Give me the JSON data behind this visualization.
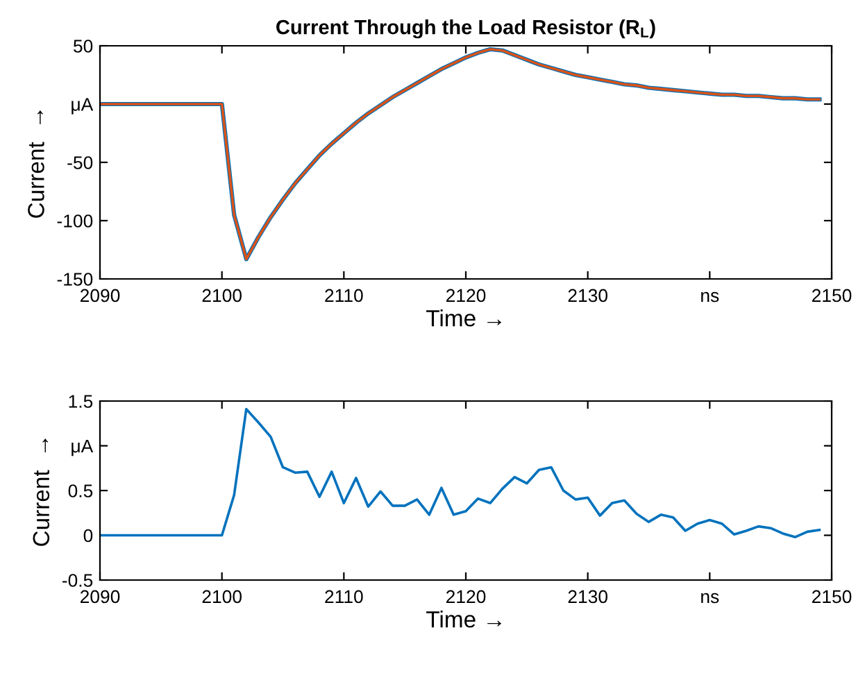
{
  "chart_data": [
    {
      "type": "line",
      "title": "Current Through the Load Resistor (R$_{L}$)",
      "xlabel": "Time →",
      "ylabel": "Current  →",
      "x": [
        2090,
        2100,
        2101,
        2102,
        2103,
        2104,
        2105,
        2106,
        2107,
        2108,
        2109,
        2110,
        2111,
        2112,
        2113,
        2114,
        2115,
        2116,
        2117,
        2118,
        2119,
        2120,
        2121,
        2122,
        2123,
        2124,
        2125,
        2126,
        2127,
        2128,
        2129,
        2130,
        2131,
        2132,
        2133,
        2134,
        2135,
        2136,
        2137,
        2138,
        2139,
        2140,
        2141,
        2142,
        2143,
        2144,
        2145,
        2146,
        2147,
        2148,
        2149
      ],
      "series": [
        {
          "color": "#0072bd",
          "values": [
            0,
            0,
            -95,
            -133,
            -114,
            -97,
            -82,
            -68,
            -56,
            -44,
            -34,
            -25,
            -16,
            -8,
            -1,
            6,
            12,
            18,
            24,
            30,
            35,
            40,
            44,
            47,
            46,
            42,
            38,
            34,
            31,
            28,
            25,
            23,
            21,
            19,
            17,
            16,
            14,
            13,
            12,
            11,
            10,
            9,
            8,
            8,
            7,
            7,
            6,
            5,
            5,
            4,
            4
          ]
        },
        {
          "color": "#d95319",
          "values": [
            0,
            0,
            -95,
            -133,
            -114,
            -97,
            -82,
            -68,
            -56,
            -44,
            -34,
            -25,
            -16,
            -8,
            -1,
            6,
            12,
            18,
            24,
            30,
            35,
            40,
            44,
            47,
            46,
            42,
            38,
            34,
            31,
            28,
            25,
            23,
            21,
            19,
            17,
            16,
            14,
            13,
            12,
            11,
            10,
            9,
            8,
            8,
            7,
            7,
            6,
            5,
            5,
            4,
            4
          ]
        }
      ],
      "xlim": [
        2090,
        2150
      ],
      "xticks": [
        2090,
        2100,
        2110,
        2120,
        2130,
        {
          "value": 2140,
          "label": "ns"
        },
        2150
      ],
      "ylim": [
        -150,
        50
      ],
      "yticks": [
        -150,
        -100,
        -50,
        {
          "value": 0,
          "label": "μA"
        },
        50
      ],
      "grid": false,
      "line_style": "solid"
    },
    {
      "type": "line",
      "xlabel": "Time →",
      "ylabel": "Current  →",
      "x": [
        2090,
        2100,
        2101,
        2102,
        2103,
        2104,
        2105,
        2106,
        2107,
        2108,
        2109,
        2110,
        2111,
        2112,
        2113,
        2114,
        2115,
        2116,
        2117,
        2118,
        2119,
        2120,
        2121,
        2122,
        2123,
        2124,
        2125,
        2126,
        2127,
        2128,
        2129,
        2130,
        2131,
        2132,
        2133,
        2134,
        2135,
        2136,
        2137,
        2138,
        2139,
        2140,
        2141,
        2142,
        2143,
        2144,
        2145,
        2146,
        2147,
        2148,
        2149
      ],
      "series": [
        {
          "color": "#0072bd",
          "values": [
            0,
            0,
            0.45,
            1.41,
            1.26,
            1.1,
            0.76,
            0.7,
            0.71,
            0.43,
            0.71,
            0.36,
            0.64,
            0.32,
            0.49,
            0.33,
            0.33,
            0.4,
            0.23,
            0.53,
            0.23,
            0.27,
            0.41,
            0.36,
            0.52,
            0.65,
            0.58,
            0.73,
            0.76,
            0.5,
            0.4,
            0.42,
            0.22,
            0.36,
            0.39,
            0.24,
            0.15,
            0.23,
            0.2,
            0.05,
            0.13,
            0.17,
            0.13,
            0.01,
            0.05,
            0.1,
            0.08,
            0.02,
            -0.02,
            0.04,
            0.06
          ]
        }
      ],
      "xlim": [
        2090,
        2150
      ],
      "xticks": [
        2090,
        2100,
        2110,
        2120,
        2130,
        {
          "value": 2140,
          "label": "ns"
        },
        2150
      ],
      "ylim": [
        -0.5,
        1.5
      ],
      "yticks": [
        -0.5,
        0,
        0.5,
        {
          "value": 1,
          "label": "μA"
        },
        1.5
      ],
      "grid": false,
      "line_style": "solid"
    }
  ]
}
